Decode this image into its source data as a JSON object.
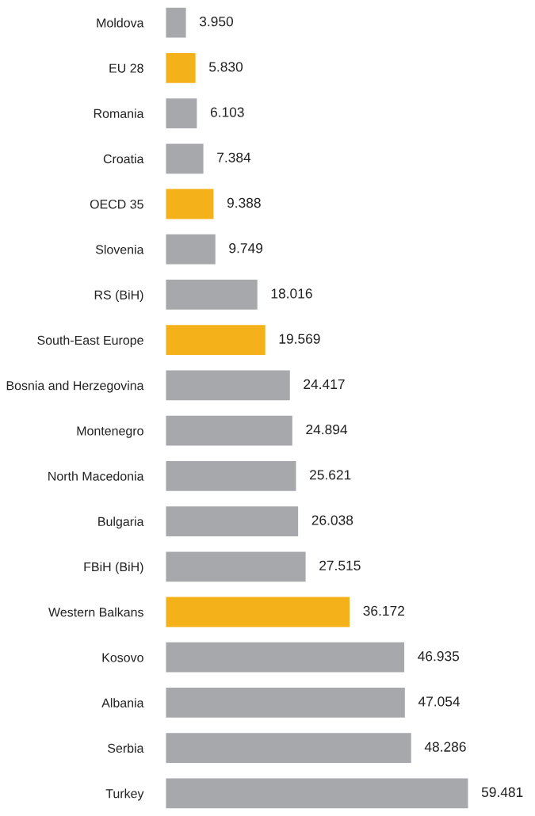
{
  "chart_data": {
    "type": "bar",
    "orientation": "horizontal",
    "tick_labels": "y",
    "grid": false,
    "categories": [
      "Moldova",
      "EU 28",
      "Romania",
      "Croatia",
      "OECD 35",
      "Slovenia",
      "RS (BiH)",
      "South-East Europe",
      "Bosnia and Herzegovina",
      "Montenegro",
      "North Macedonia",
      "Bulgaria",
      "FBiH (BiH)",
      "Western Balkans",
      "Kosovo",
      "Albania",
      "Serbia",
      "Turkey"
    ],
    "values": [
      3.95,
      5.83,
      6.103,
      7.384,
      9.388,
      9.749,
      18.016,
      19.569,
      24.417,
      24.894,
      25.621,
      26.038,
      27.515,
      36.172,
      46.935,
      47.054,
      48.286,
      59.481
    ],
    "value_labels": [
      "3.950",
      "5.830",
      "6.103",
      "7.384",
      "9.388",
      "9.749",
      "18.016",
      "19.569",
      "24.417",
      "24.894",
      "25.621",
      "26.038",
      "27.515",
      "36.172",
      "46.935",
      "47.054",
      "48.286",
      "59.481"
    ],
    "colors": [
      "#a7a8ab",
      "#f5b11a",
      "#a7a8ab",
      "#a7a8ab",
      "#f5b11a",
      "#a7a8ab",
      "#a7a8ab",
      "#f5b11a",
      "#a7a8ab",
      "#a7a8ab",
      "#a7a8ab",
      "#a7a8ab",
      "#a7a8ab",
      "#f5b11a",
      "#a7a8ab",
      "#a7a8ab",
      "#a7a8ab",
      "#a7a8ab"
    ]
  }
}
